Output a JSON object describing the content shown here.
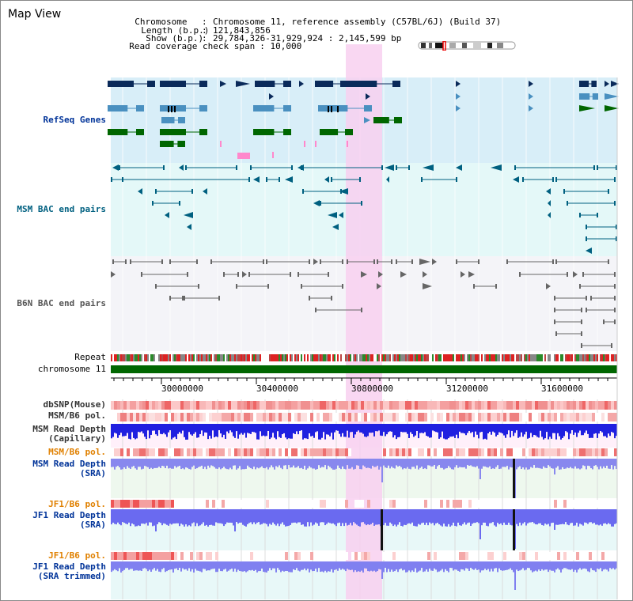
{
  "title": "Map View",
  "header": {
    "chromosome_key": "Chromosome",
    "chromosome_val": "Chromosome 11, reference assembly (C57BL/6J) (Build 37)",
    "length_key": "Length (b.p.)",
    "length_val": "121,843,856",
    "show_key": "Show (b.p.)",
    "show_val": "29,784,326-31,929,924 : 2,145,599 bp",
    "read_key": "Read coverage check span",
    "read_val": "10,000"
  },
  "tracks": {
    "refseq": "RefSeq Genes",
    "msm_bac": "MSM BAC end pairs",
    "b6n_bac": "B6N BAC end pairs",
    "repeat": "Repeat",
    "chromosome": "chromosome 11",
    "dbsnp": "dbSNP(Mouse)",
    "msm_b6_pol": "MSM/B6 pol.",
    "msm_depth_cap_1": "MSM Read Depth",
    "msm_depth_cap_2": "(Capillary)",
    "msm_b6_pol2": "MSM/B6 pol.",
    "msm_depth_sra_1": "MSM Read Depth",
    "msm_depth_sra_2": "(SRA)",
    "jf1_b6_pol": "JF1/B6 pol.",
    "jf1_depth_sra_1": "JF1 Read Depth",
    "jf1_depth_sra_2": "(SRA)",
    "jf1_b6_pol2": "JF1/B6 pol.",
    "jf1_depth_trim_1": "JF1 Read Depth",
    "jf1_depth_trim_2": "(SRA trimmed)"
  },
  "axis": {
    "ticks": [
      "30000000",
      "30400000",
      "30800000",
      "31200000",
      "31600000"
    ]
  },
  "colors": {
    "refseq_bg": "#d8eef8",
    "bac_bg": "#e4f8f8",
    "b6n_bg": "#f4f4f8",
    "highlight": "#f8d0f0",
    "chromosome": "#006600",
    "gene_dark": "#0a2a5a",
    "gene_green": "#006600",
    "gene_light": "#4a90c0",
    "msm_bac": "#006080",
    "b6n_bac": "#666666",
    "depth": "#6060ff",
    "depth_strong": "#2020e0"
  }
}
